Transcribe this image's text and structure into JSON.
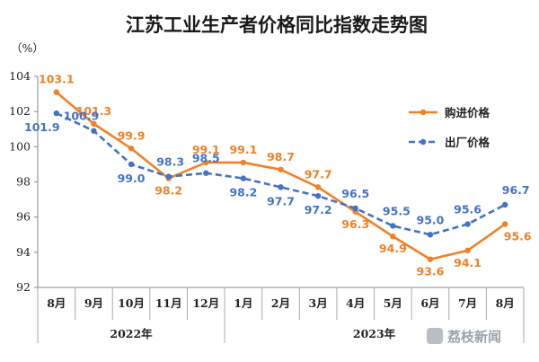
{
  "chart_data": {
    "type": "line",
    "title": "江苏工业生产者价格同比指数走势图",
    "unit": "（%）",
    "categories": [
      "8月",
      "9月",
      "10月",
      "11月",
      "12月",
      "1月",
      "2月",
      "3月",
      "4月",
      "5月",
      "6月",
      "7月",
      "8月"
    ],
    "year_groups": [
      {
        "label": "2022年",
        "from": 0,
        "to": 4
      },
      {
        "label": "2023年",
        "from": 5,
        "to": 12
      }
    ],
    "ylim": [
      92,
      104
    ],
    "yticks": [
      92,
      94,
      96,
      98,
      100,
      102,
      104
    ],
    "grid": false,
    "legend_position": "top-right",
    "series": [
      {
        "name": "购进价格",
        "style": "solid",
        "color": "#F08127",
        "values": [
          103.1,
          101.3,
          99.9,
          98.2,
          99.1,
          99.1,
          98.7,
          97.7,
          96.3,
          94.9,
          93.6,
          94.1,
          95.6
        ],
        "labels": [
          "103.1",
          "101.3",
          "99.9",
          "98.2",
          "99.1",
          "99.1",
          "98.7",
          "97.7",
          "96.3",
          "94.9",
          "93.6",
          "94.1",
          "95.6"
        ]
      },
      {
        "name": "出厂价格",
        "style": "dashed",
        "color": "#4472C4",
        "values": [
          101.9,
          100.9,
          99.0,
          98.3,
          98.5,
          98.2,
          97.7,
          97.2,
          96.5,
          95.5,
          95.0,
          95.6,
          96.7
        ],
        "labels": [
          "101.9",
          "100.9",
          "99.0",
          "98.3",
          "98.5",
          "98.2",
          "97.7",
          "97.2",
          "96.5",
          "95.5",
          "95.0",
          "95.6",
          "96.7"
        ]
      }
    ]
  },
  "watermark": {
    "text": "荔枝新闻",
    "icon": "lychee-news-logo-icon"
  }
}
